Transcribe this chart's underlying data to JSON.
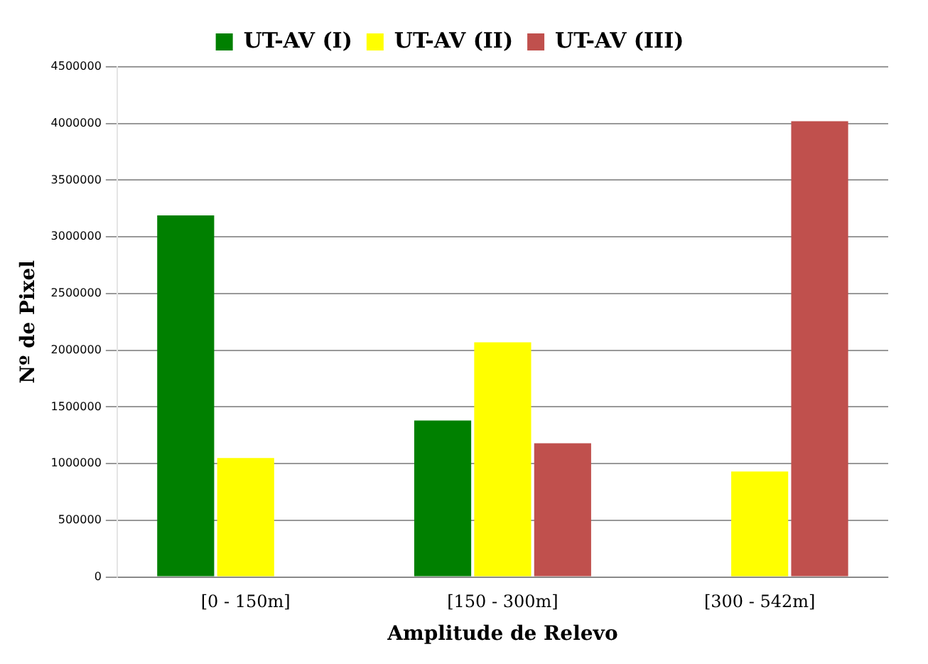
{
  "chart_data": {
    "type": "bar",
    "xlabel": "Amplitude de Relevo",
    "ylabel": "Nº de Pixel",
    "categories": [
      "[0 - 150m]",
      "[150 - 300m]",
      "[300 - 542m]"
    ],
    "series": [
      {
        "name": "UT-AV (I)",
        "color": "#008000",
        "values": [
          3190000,
          1380000,
          0
        ]
      },
      {
        "name": "UT-AV (II)",
        "color": "#ffff00",
        "values": [
          1050000,
          2070000,
          930000
        ]
      },
      {
        "name": "UT-AV (III)",
        "color": "#c0504d",
        "values": [
          0,
          1180000,
          4020000
        ]
      }
    ],
    "ylim": [
      0,
      4500000
    ],
    "yticks": [
      0,
      500000,
      1000000,
      1500000,
      2000000,
      2500000,
      3000000,
      3500000,
      4000000,
      4500000
    ],
    "grid": "y",
    "legend": "top"
  }
}
